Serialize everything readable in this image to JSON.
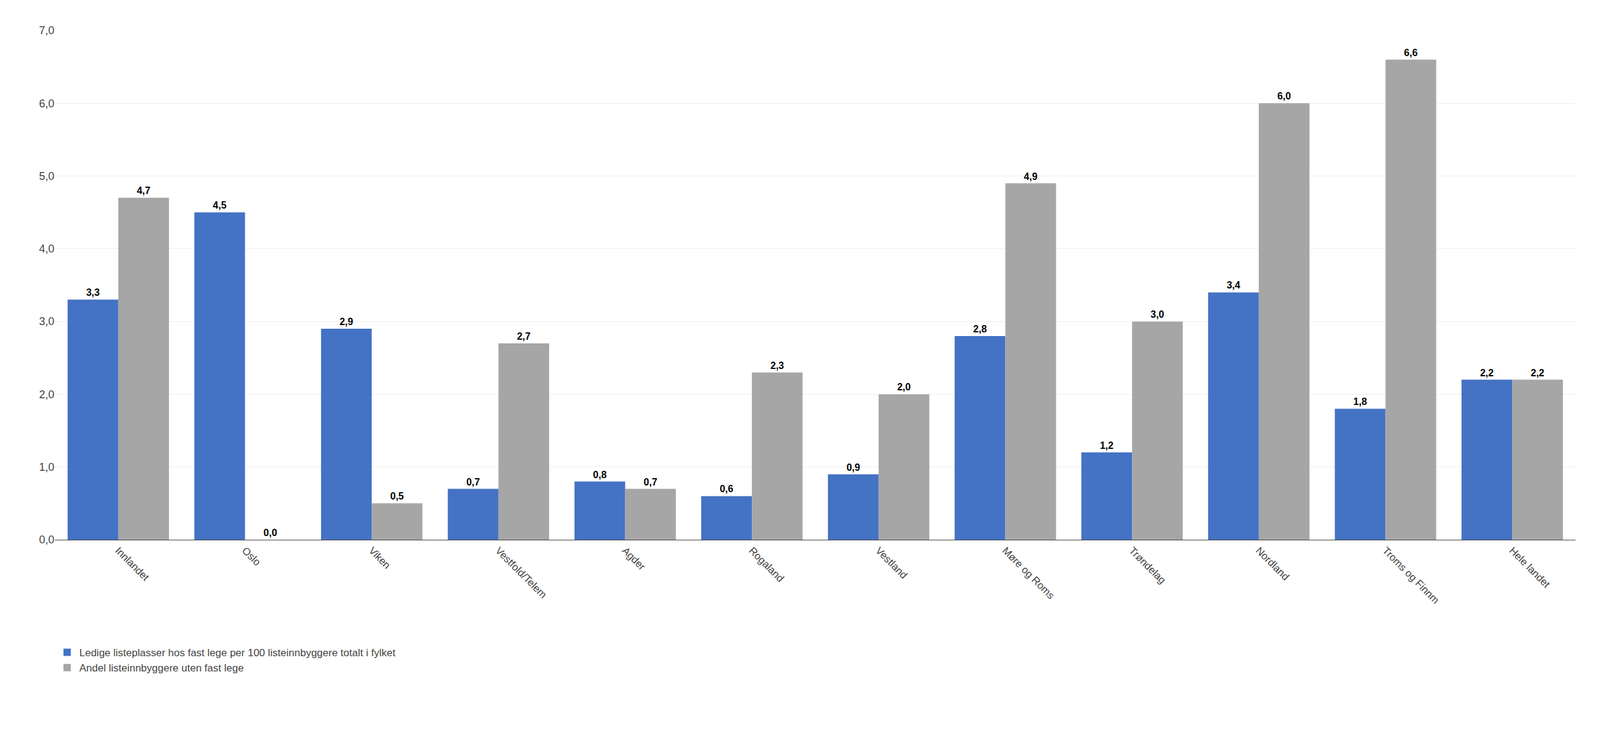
{
  "chart_data": {
    "type": "bar",
    "categories": [
      "Innlandet",
      "Oslo",
      "Viken",
      "Vestfold/Telem",
      "Agder",
      "Rogaland",
      "Vestland",
      "Møre og Roms",
      "Trøndelag",
      "Nordland",
      "Troms og Finnm",
      "Hele landet"
    ],
    "series": [
      {
        "name": "Ledige listeplasser hos fast lege per 100 listeinnbyggere totalt i fylket",
        "color": "#4472C4",
        "values": [
          3.3,
          4.5,
          2.9,
          0.7,
          0.8,
          0.6,
          0.9,
          2.8,
          1.2,
          3.4,
          1.8,
          2.2
        ],
        "value_labels": [
          "3,3",
          "4,5",
          "2,9",
          "0,7",
          "0,8",
          "0,6",
          "0,9",
          "2,8",
          "1,2",
          "3,4",
          "1,8",
          "2,2"
        ]
      },
      {
        "name": "Andel listeinnbyggere uten fast lege",
        "color": "#A6A6A6",
        "values": [
          4.7,
          0.0,
          0.5,
          2.7,
          0.7,
          2.3,
          2.0,
          4.9,
          3.0,
          6.0,
          6.6,
          2.2
        ],
        "value_labels": [
          "4,7",
          "0,0",
          "0,5",
          "2,7",
          "0,7",
          "2,3",
          "2,0",
          "4,9",
          "3,0",
          "6,0",
          "6,6",
          "2,2"
        ]
      }
    ],
    "ylim": [
      0,
      7.0
    ],
    "yticks": [
      {
        "value": 0.0,
        "label": "0,0"
      },
      {
        "value": 1.0,
        "label": "1,0"
      },
      {
        "value": 2.0,
        "label": "2,0"
      },
      {
        "value": 3.0,
        "label": "3,0"
      },
      {
        "value": 4.0,
        "label": "4,0"
      },
      {
        "value": 5.0,
        "label": "5,0"
      },
      {
        "value": 6.0,
        "label": "6,0"
      },
      {
        "value": 7.0,
        "label": "7,0"
      }
    ],
    "grid": true,
    "data_labels": true,
    "legend": "lower left"
  }
}
